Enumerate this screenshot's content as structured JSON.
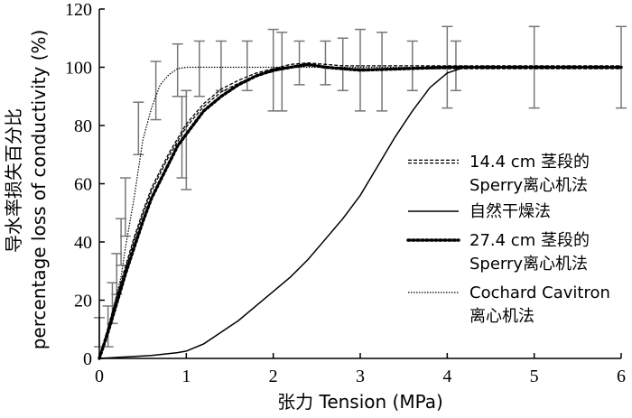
{
  "chart_data": {
    "type": "line",
    "xlabel": "张力 Tension (MPa)",
    "ylabel_cn": "导水率损失百分比",
    "ylabel_en": "percentage loss of conductivity (%)",
    "xlim": [
      0,
      6
    ],
    "ylim": [
      0,
      120
    ],
    "x_ticks": [
      "0",
      "1",
      "2",
      "3",
      "4",
      "5",
      "6"
    ],
    "y_ticks": [
      "0",
      "20",
      "40",
      "60",
      "80",
      "100",
      "120"
    ],
    "grid": false,
    "legend_position": "right",
    "series": [
      {
        "name_lines": [
          "14.4 cm 茎段的",
          "Sperry离心机法"
        ],
        "style": "double-dashed",
        "x": [
          0,
          0.1,
          0.2,
          0.3,
          0.4,
          0.5,
          0.6,
          0.7,
          0.8,
          0.9,
          1.0,
          1.2,
          1.4,
          1.6,
          1.8,
          2.0,
          2.2,
          2.4,
          2.6,
          2.8,
          3.0,
          3.5,
          4.0,
          4.5,
          5.0,
          5.5,
          6.0
        ],
        "y": [
          0,
          10,
          21,
          31,
          41,
          50,
          58,
          64,
          70,
          75,
          80,
          87,
          92,
          95,
          97.5,
          99,
          100.5,
          101,
          100.5,
          100,
          100,
          100,
          100,
          100,
          100,
          100,
          100
        ]
      },
      {
        "name_lines": [
          "自然干燥法"
        ],
        "style": "solid",
        "x": [
          0,
          0.3,
          0.6,
          0.9,
          1.0,
          1.2,
          1.4,
          1.6,
          1.8,
          2.0,
          2.2,
          2.4,
          2.6,
          2.8,
          3.0,
          3.2,
          3.4,
          3.6,
          3.8,
          4.0,
          4.2,
          4.5,
          5.0,
          5.5,
          6.0
        ],
        "y": [
          0,
          0.5,
          1.0,
          2.0,
          2.5,
          5,
          9,
          13,
          18,
          23,
          28,
          34,
          41,
          48,
          56,
          66,
          76,
          85,
          93,
          98,
          100,
          100,
          100,
          100,
          100
        ]
      },
      {
        "name_lines": [
          "27.4 cm 茎段的",
          "Sperry离心机法"
        ],
        "style": "dotted-bold",
        "x": [
          0,
          0.1,
          0.2,
          0.3,
          0.4,
          0.5,
          0.6,
          0.7,
          0.8,
          0.9,
          1.0,
          1.2,
          1.4,
          1.6,
          1.8,
          2.0,
          2.2,
          2.4,
          2.6,
          2.8,
          3.0,
          3.5,
          4.0,
          4.5,
          5.0,
          5.5,
          6.0
        ],
        "y": [
          0,
          9,
          19,
          29,
          38,
          47,
          55,
          61,
          67,
          73,
          77,
          85,
          90,
          94,
          97,
          99,
          100,
          101,
          100,
          99.5,
          99,
          99.5,
          100,
          100,
          100,
          100,
          100
        ]
      },
      {
        "name_lines": [
          "Cochard Cavitron",
          "离心机法"
        ],
        "style": "dotted-thin",
        "x": [
          0,
          0.1,
          0.2,
          0.25,
          0.3,
          0.4,
          0.5,
          0.6,
          0.7,
          0.8,
          0.9,
          1.0,
          1.2,
          1.5,
          2.0,
          2.5,
          3.0,
          4.0,
          5.0,
          6.0
        ],
        "y": [
          0,
          10,
          22,
          28,
          38,
          55,
          75,
          86,
          94,
          97.5,
          99.5,
          100,
          100,
          100,
          100,
          100,
          100,
          100,
          100,
          100
        ]
      }
    ],
    "error_bars": [
      {
        "x": 0.0,
        "low": 4,
        "high": 14
      },
      {
        "x": 0.1,
        "low": 4,
        "high": 18
      },
      {
        "x": 0.15,
        "low": 12,
        "high": 26
      },
      {
        "x": 0.2,
        "low": 22,
        "high": 36
      },
      {
        "x": 0.25,
        "low": 32,
        "high": 48
      },
      {
        "x": 0.3,
        "low": 42,
        "high": 62
      },
      {
        "x": 0.45,
        "low": 70,
        "high": 88
      },
      {
        "x": 0.65,
        "low": 82,
        "high": 102
      },
      {
        "x": 0.9,
        "low": 90,
        "high": 108
      },
      {
        "x": 0.95,
        "low": 62,
        "high": 90
      },
      {
        "x": 1.0,
        "low": 58,
        "high": 92
      },
      {
        "x": 1.15,
        "low": 90,
        "high": 109
      },
      {
        "x": 1.4,
        "low": 92,
        "high": 109
      },
      {
        "x": 1.7,
        "low": 92,
        "high": 109
      },
      {
        "x": 2.0,
        "low": 85,
        "high": 113
      },
      {
        "x": 2.1,
        "low": 85,
        "high": 112
      },
      {
        "x": 2.3,
        "low": 94,
        "high": 109
      },
      {
        "x": 2.6,
        "low": 94,
        "high": 109
      },
      {
        "x": 2.8,
        "low": 92,
        "high": 110
      },
      {
        "x": 3.0,
        "low": 85,
        "high": 113
      },
      {
        "x": 3.25,
        "low": 85,
        "high": 112
      },
      {
        "x": 3.6,
        "low": 92,
        "high": 109
      },
      {
        "x": 4.0,
        "low": 86,
        "high": 114
      },
      {
        "x": 4.1,
        "low": 92,
        "high": 109
      },
      {
        "x": 5.0,
        "low": 86,
        "high": 114
      },
      {
        "x": 6.0,
        "low": 86,
        "high": 114
      }
    ]
  }
}
